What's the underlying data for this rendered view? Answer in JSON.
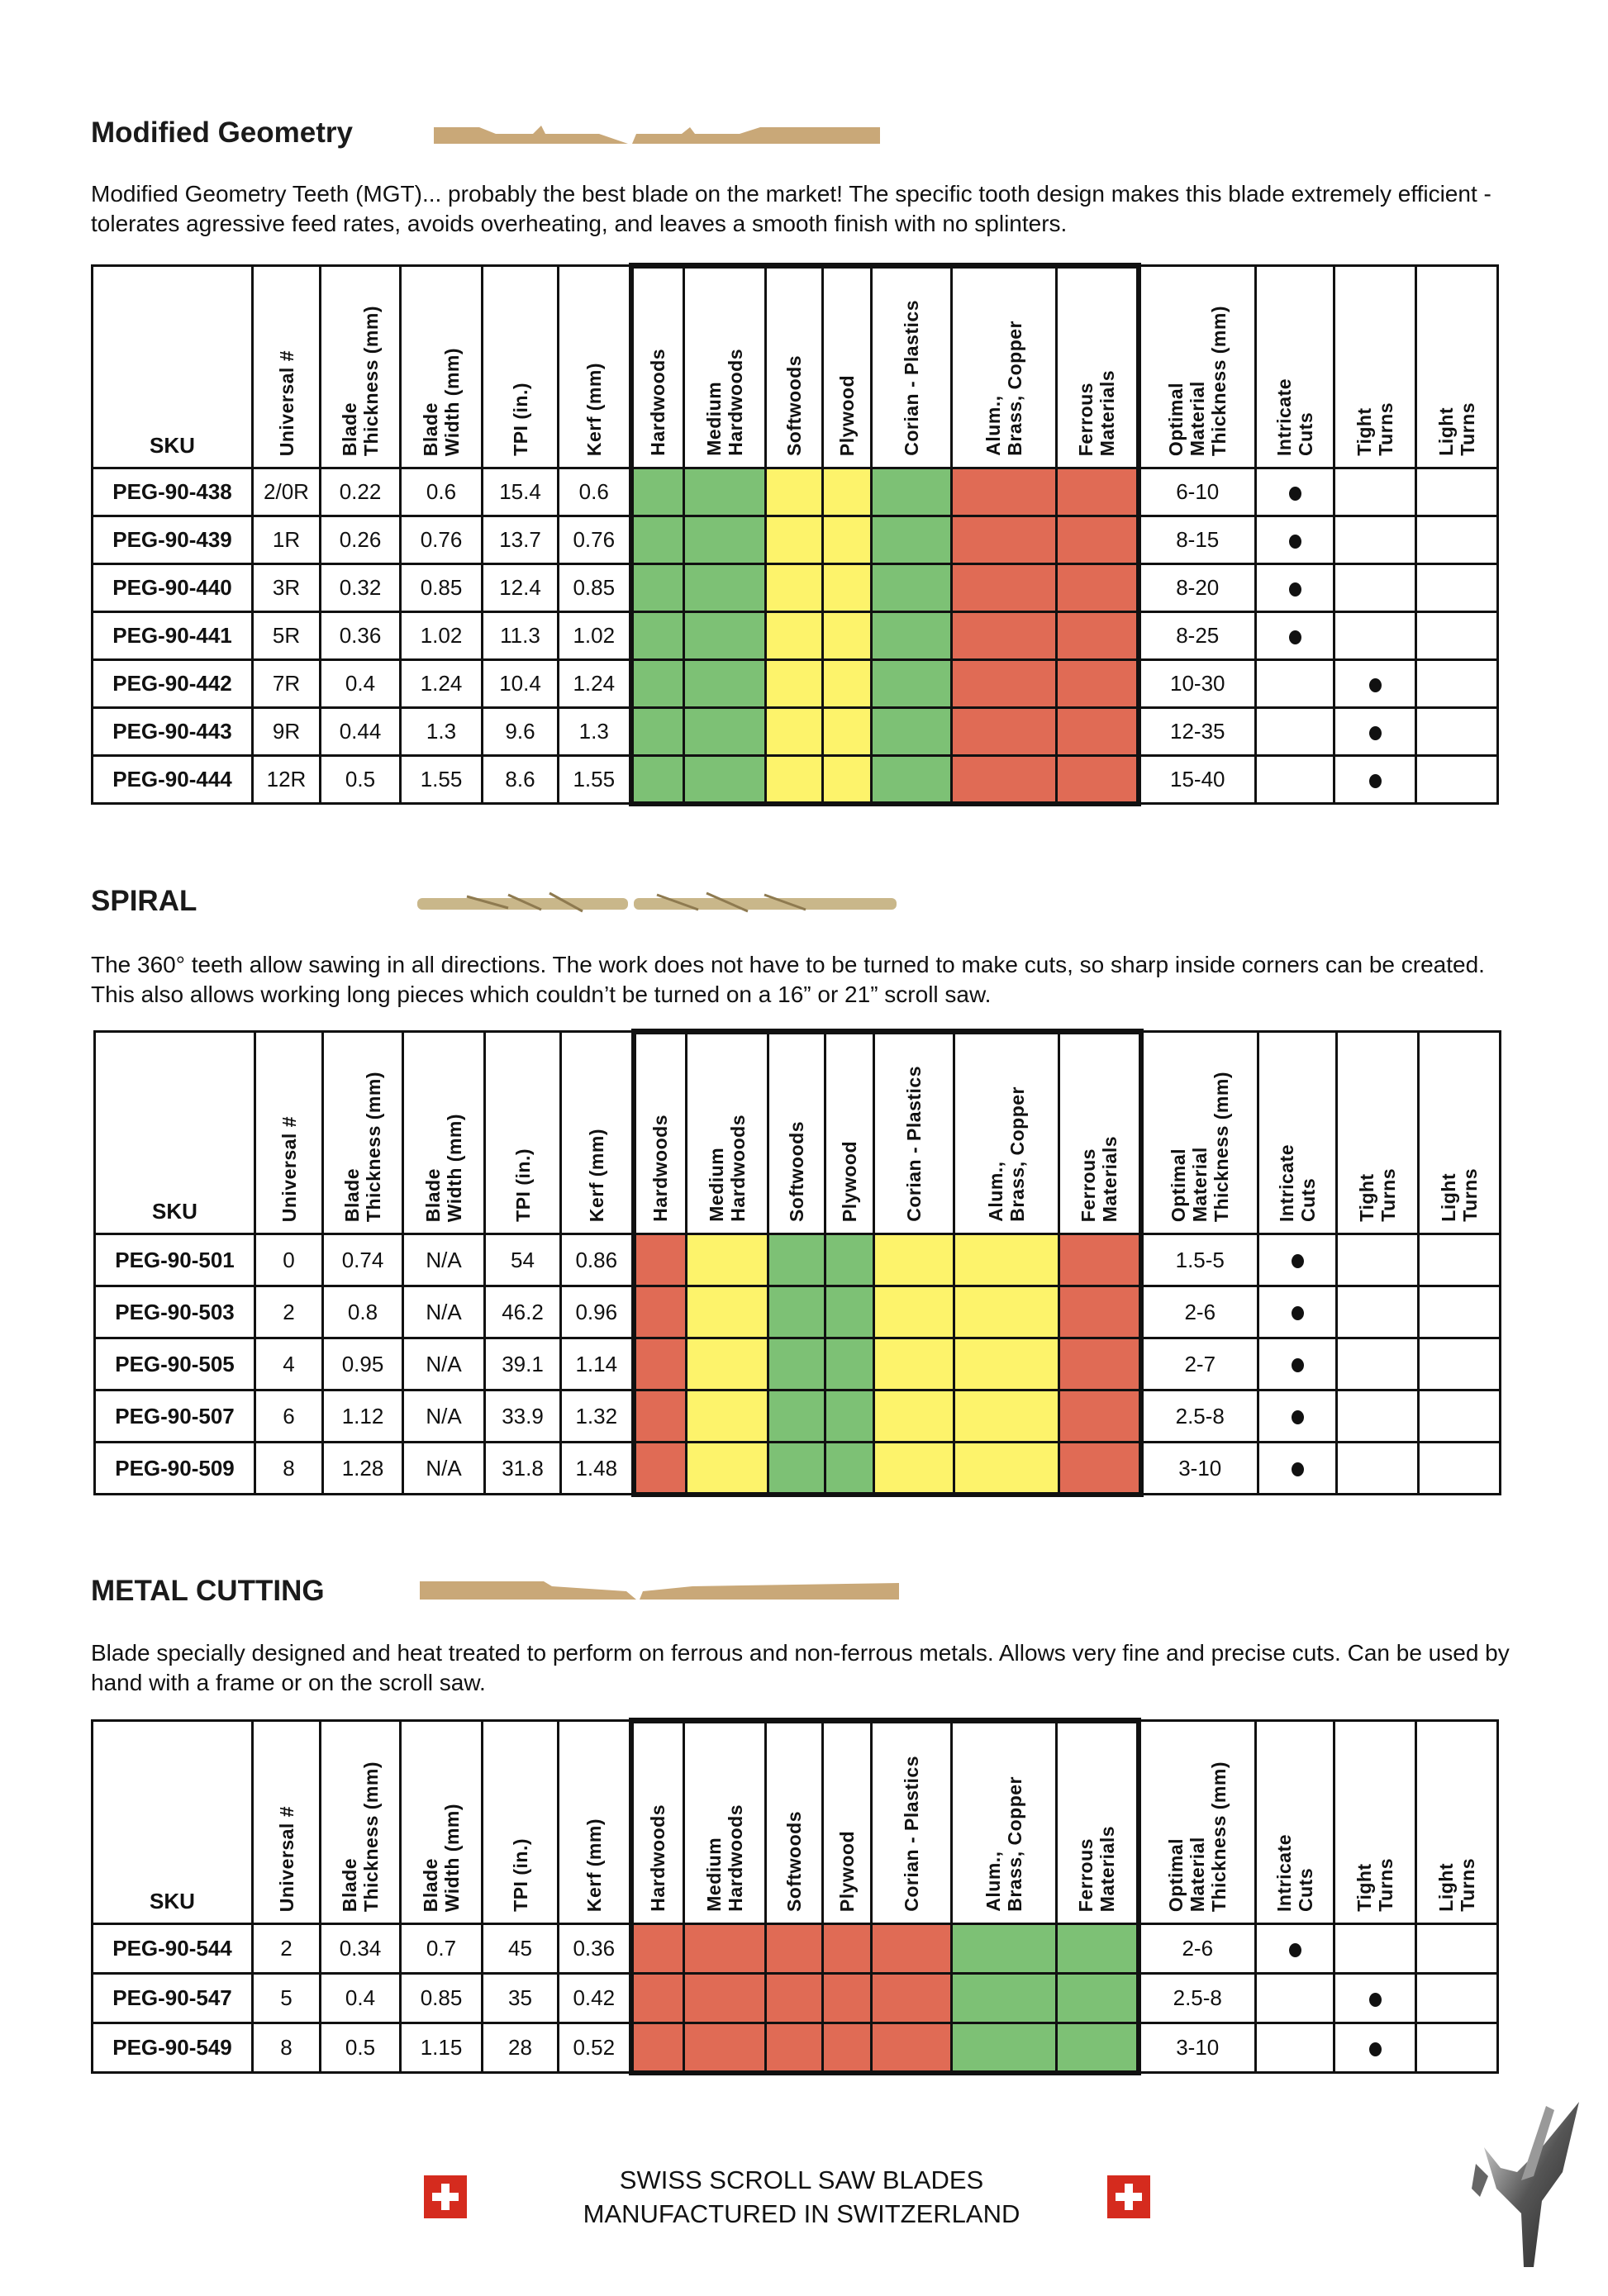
{
  "colors": {
    "green": "#7dc175",
    "yellow": "#fdf36b",
    "red": "#e06b55"
  },
  "headers": [
    "SKU",
    "Universal #",
    "Blade\nThickness (mm)",
    "Blade\nWidth (mm)",
    "TPI (in.)",
    "Kerf (mm)",
    "Hardwoods",
    "Medium\nHardwoods",
    "Softwoods",
    "Plywood",
    "Corian  - Plastics",
    "Alum.,\nBrass, Copper",
    "Ferrous\nMaterials",
    "Optimal\nMaterial\nThickness (mm)",
    "Intricate\nCuts",
    "Tight\nTurns",
    "Light\nTurns"
  ],
  "sections": [
    {
      "title": "Modified Geometry",
      "description": "Modified Geometry Teeth (MGT)... probably the best blade on the market! The specific tooth design makes this blade extremely efficient - tolerates agressive feed rates, avoids overheating, and leaves a smooth finish with no splinters.",
      "materials": [
        "green",
        "green",
        "yellow",
        "yellow",
        "green",
        "red",
        "red"
      ],
      "rows": [
        {
          "sku": "PEG-90-438",
          "universal": "2/0R",
          "thickness": "0.22",
          "width": "0.6",
          "tpi": "15.4",
          "kerf": "0.6",
          "optimal": "6-10",
          "use": "intricate"
        },
        {
          "sku": "PEG-90-439",
          "universal": "1R",
          "thickness": "0.26",
          "width": "0.76",
          "tpi": "13.7",
          "kerf": "0.76",
          "optimal": "8-15",
          "use": "intricate"
        },
        {
          "sku": "PEG-90-440",
          "universal": "3R",
          "thickness": "0.32",
          "width": "0.85",
          "tpi": "12.4",
          "kerf": "0.85",
          "optimal": "8-20",
          "use": "intricate"
        },
        {
          "sku": "PEG-90-441",
          "universal": "5R",
          "thickness": "0.36",
          "width": "1.02",
          "tpi": "11.3",
          "kerf": "1.02",
          "optimal": "8-25",
          "use": "intricate"
        },
        {
          "sku": "PEG-90-442",
          "universal": "7R",
          "thickness": "0.4",
          "width": "1.24",
          "tpi": "10.4",
          "kerf": "1.24",
          "optimal": "10-30",
          "use": "tight"
        },
        {
          "sku": "PEG-90-443",
          "universal": "9R",
          "thickness": "0.44",
          "width": "1.3",
          "tpi": "9.6",
          "kerf": "1.3",
          "optimal": "12-35",
          "use": "tight"
        },
        {
          "sku": "PEG-90-444",
          "universal": "12R",
          "thickness": "0.5",
          "width": "1.55",
          "tpi": "8.6",
          "kerf": "1.55",
          "optimal": "15-40",
          "use": "tight"
        }
      ]
    },
    {
      "title": "SPIRAL",
      "description": "The 360° teeth allow sawing in all directions. The work does not have to be turned to make cuts, so sharp inside corners can be created. This also allows working long pieces which couldn’t be turned on a 16” or 21” scroll saw.",
      "materials": [
        "red",
        "yellow",
        "green",
        "green",
        "yellow",
        "yellow",
        "red"
      ],
      "rows": [
        {
          "sku": "PEG-90-501",
          "universal": "0",
          "thickness": "0.74",
          "width": "N/A",
          "tpi": "54",
          "kerf": "0.86",
          "optimal": "1.5-5",
          "use": "intricate"
        },
        {
          "sku": "PEG-90-503",
          "universal": "2",
          "thickness": "0.8",
          "width": "N/A",
          "tpi": "46.2",
          "kerf": "0.96",
          "optimal": "2-6",
          "use": "intricate"
        },
        {
          "sku": "PEG-90-505",
          "universal": "4",
          "thickness": "0.95",
          "width": "N/A",
          "tpi": "39.1",
          "kerf": "1.14",
          "optimal": "2-7",
          "use": "intricate"
        },
        {
          "sku": "PEG-90-507",
          "universal": "6",
          "thickness": "1.12",
          "width": "N/A",
          "tpi": "33.9",
          "kerf": "1.32",
          "optimal": "2.5-8",
          "use": "intricate"
        },
        {
          "sku": "PEG-90-509",
          "universal": "8",
          "thickness": "1.28",
          "width": "N/A",
          "tpi": "31.8",
          "kerf": "1.48",
          "optimal": "3-10",
          "use": "intricate"
        }
      ]
    },
    {
      "title": "METAL CUTTING",
      "description": "Blade specially designed and heat treated to perform on ferrous and non-ferrous metals. Allows very fine and precise cuts. Can be used by hand with a frame or on the scroll saw.",
      "materials": [
        "red",
        "red",
        "red",
        "red",
        "red",
        "green",
        "green"
      ],
      "rows": [
        {
          "sku": "PEG-90-544",
          "universal": "2",
          "thickness": "0.34",
          "width": "0.7",
          "tpi": "45",
          "kerf": "0.36",
          "optimal": "2-6",
          "use": "intricate"
        },
        {
          "sku": "PEG-90-547",
          "universal": "5",
          "thickness": "0.4",
          "width": "0.85",
          "tpi": "35",
          "kerf": "0.42",
          "optimal": "2.5-8",
          "use": "tight"
        },
        {
          "sku": "PEG-90-549",
          "universal": "8",
          "thickness": "0.5",
          "width": "1.15",
          "tpi": "28",
          "kerf": "0.52",
          "optimal": "3-10",
          "use": "tight"
        }
      ]
    }
  ],
  "footer": {
    "line1": "SWISS SCROLL SAW BLADES",
    "line2": "MANUFACTURED IN SWITZERLAND"
  }
}
